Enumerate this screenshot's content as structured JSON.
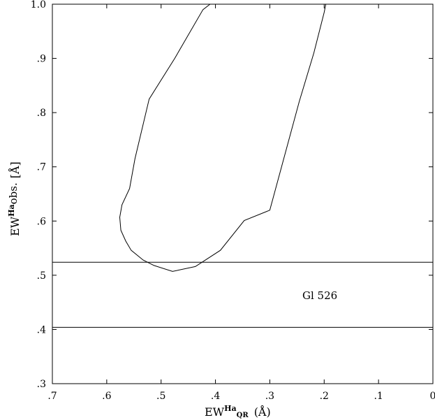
{
  "chart_data": {
    "type": "line",
    "annotation": "Gl 526",
    "xlim": [
      0.7,
      0.0
    ],
    "ylim": [
      0.3,
      1.0
    ],
    "x_ticks": [
      0.7,
      0.6,
      0.5,
      0.4,
      0.3,
      0.2,
      0.1,
      0.0
    ],
    "y_ticks": [
      0.3,
      0.4,
      0.5,
      0.6,
      0.7,
      0.8,
      0.9,
      1.0
    ],
    "x_tick_labels": [
      ".7",
      ".6",
      ".5",
      ".4",
      ".3",
      ".2",
      ".1",
      "0"
    ],
    "y_tick_labels": [
      ".3",
      ".4",
      ".5",
      ".6",
      ".7",
      ".8",
      ".9",
      "1.0"
    ],
    "xlabel": {
      "main": "EW",
      "sup": "Ha",
      "sub": "QR",
      "unit": "(Å)"
    },
    "ylabel": {
      "main": "EW",
      "sup": "Ha",
      "sub": "obs.",
      "unit": "[Å]"
    },
    "horizontal_lines": [
      0.524,
      0.404
    ],
    "series": [
      {
        "values": [
          {
            "x": 0.41,
            "y": 1.0
          },
          {
            "x": 0.423,
            "y": 0.99
          },
          {
            "x": 0.475,
            "y": 0.9
          },
          {
            "x": 0.522,
            "y": 0.825
          },
          {
            "x": 0.548,
            "y": 0.715
          },
          {
            "x": 0.558,
            "y": 0.66
          },
          {
            "x": 0.572,
            "y": 0.63
          },
          {
            "x": 0.576,
            "y": 0.607
          },
          {
            "x": 0.574,
            "y": 0.583
          },
          {
            "x": 0.565,
            "y": 0.563
          },
          {
            "x": 0.555,
            "y": 0.546
          },
          {
            "x": 0.533,
            "y": 0.528
          },
          {
            "x": 0.513,
            "y": 0.518
          },
          {
            "x": 0.479,
            "y": 0.507
          },
          {
            "x": 0.437,
            "y": 0.516
          },
          {
            "x": 0.391,
            "y": 0.546
          },
          {
            "x": 0.347,
            "y": 0.601
          },
          {
            "x": 0.3,
            "y": 0.62
          },
          {
            "x": 0.246,
            "y": 0.82
          },
          {
            "x": 0.219,
            "y": 0.91
          },
          {
            "x": 0.2,
            "y": 0.985
          },
          {
            "x": 0.197,
            "y": 1.0
          }
        ]
      }
    ]
  }
}
